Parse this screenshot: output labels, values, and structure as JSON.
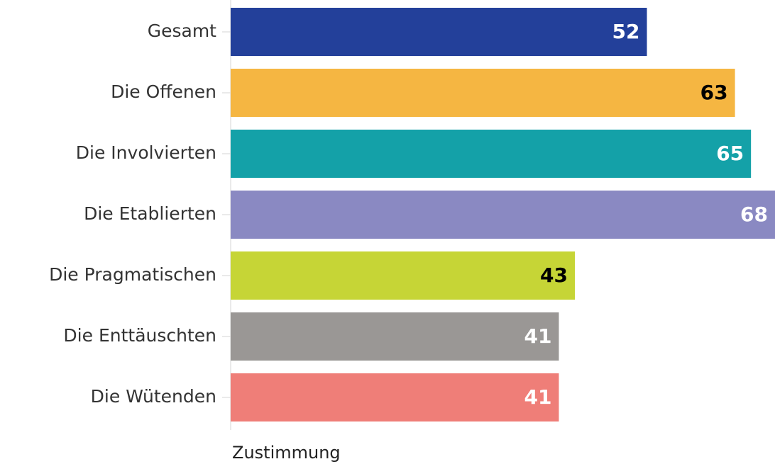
{
  "chart_data": {
    "type": "bar",
    "orientation": "horizontal",
    "categories": [
      "Gesamt",
      "Die Offenen",
      "Die Involvierten",
      "Die Etablierten",
      "Die Pragmatischen",
      "Die Enttäuschten",
      "Die Wütenden"
    ],
    "values": [
      52,
      63,
      65,
      68,
      43,
      41,
      41
    ],
    "colors": [
      "#23409a",
      "#f5b642",
      "#14a1a8",
      "#8a89c2",
      "#c6d536",
      "#9a9795",
      "#ef7e78"
    ],
    "label_colors": [
      "#ffffff",
      "#000000",
      "#ffffff",
      "#ffffff",
      "#000000",
      "#ffffff",
      "#ffffff"
    ],
    "xlabel": "Zustimmung",
    "xlim": [
      0,
      68
    ]
  }
}
